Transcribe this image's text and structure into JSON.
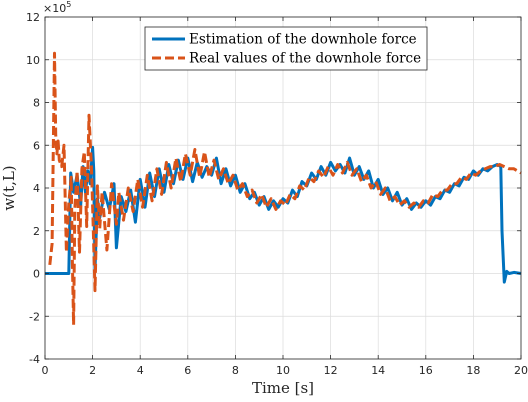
{
  "chart_data": {
    "type": "line",
    "xlabel": "Time [s]",
    "ylabel": "w(t,L)",
    "y_exponent_base": "×10",
    "y_exponent_power": "5",
    "xlim": [
      0,
      20
    ],
    "ylim": [
      -4,
      12
    ],
    "x_ticks": [
      "0",
      "2",
      "4",
      "6",
      "8",
      "10",
      "12",
      "14",
      "16",
      "18",
      "20"
    ],
    "y_ticks": [
      "-4",
      "-2",
      "0",
      "2",
      "4",
      "6",
      "8",
      "10",
      "12"
    ],
    "grid": true,
    "legend_position": "top-center",
    "series": [
      {
        "name": "Estimation of the downhole force",
        "color": "#0072BD",
        "style": "solid",
        "x": [
          0,
          1.0,
          1.08,
          1.2,
          1.35,
          1.5,
          1.6,
          1.7,
          1.8,
          1.9,
          2.0,
          2.05,
          2.1,
          2.2,
          2.3,
          2.5,
          2.7,
          2.9,
          3.0,
          3.2,
          3.4,
          3.6,
          3.8,
          4.0,
          4.2,
          4.4,
          4.6,
          4.8,
          5.0,
          5.2,
          5.4,
          5.6,
          5.8,
          6.0,
          6.2,
          6.4,
          6.6,
          6.8,
          7.0,
          7.2,
          7.4,
          7.6,
          7.8,
          8.0,
          8.2,
          8.4,
          8.6,
          8.8,
          9.0,
          9.2,
          9.4,
          9.6,
          9.8,
          10.0,
          10.2,
          10.4,
          10.6,
          10.8,
          11.0,
          11.2,
          11.4,
          11.6,
          11.8,
          12.0,
          12.2,
          12.4,
          12.6,
          12.8,
          13.0,
          13.2,
          13.4,
          13.6,
          13.8,
          14.0,
          14.2,
          14.4,
          14.6,
          14.8,
          15.0,
          15.2,
          15.4,
          15.6,
          15.8,
          16.0,
          16.2,
          16.4,
          16.6,
          16.8,
          17.0,
          17.2,
          17.4,
          17.6,
          17.8,
          18.0,
          18.2,
          18.4,
          18.6,
          18.8,
          19.0,
          19.15,
          19.2,
          19.3,
          19.4,
          19.5,
          19.7,
          20.0
        ],
        "y": [
          0,
          0,
          4.7,
          3.8,
          4.6,
          3.2,
          5.0,
          3.8,
          4.8,
          4.2,
          5.9,
          4.8,
          0.2,
          3.5,
          2.6,
          3.8,
          3.0,
          4.2,
          1.2,
          3.6,
          2.9,
          3.9,
          2.4,
          4.4,
          3.1,
          4.7,
          3.6,
          4.9,
          3.8,
          5.1,
          4.2,
          5.3,
          4.4,
          5.4,
          4.3,
          5.2,
          4.5,
          5.0,
          4.6,
          5.4,
          4.2,
          4.9,
          4.1,
          4.6,
          3.8,
          4.2,
          3.5,
          3.8,
          3.2,
          3.6,
          3.0,
          3.4,
          3.1,
          3.5,
          3.3,
          3.9,
          3.6,
          4.3,
          4.1,
          4.7,
          4.4,
          5.0,
          4.6,
          5.2,
          4.8,
          5.1,
          4.7,
          5.4,
          4.6,
          5.0,
          4.4,
          4.8,
          4.0,
          4.4,
          3.7,
          4.0,
          3.4,
          3.8,
          3.2,
          3.5,
          3.0,
          3.3,
          3.1,
          3.4,
          3.2,
          3.6,
          3.5,
          3.9,
          3.8,
          4.2,
          4.1,
          4.5,
          4.4,
          4.8,
          4.6,
          4.9,
          4.8,
          5.0,
          5.1,
          5.0,
          2.0,
          -0.4,
          0.1,
          0,
          0.05,
          0
        ]
      },
      {
        "name": "Real values of the downhole force",
        "color": "#D95319",
        "style": "dashed",
        "x": [
          0.2,
          0.3,
          0.4,
          0.45,
          0.5,
          0.55,
          0.6,
          0.7,
          0.8,
          0.9,
          1.0,
          1.1,
          1.15,
          1.2,
          1.25,
          1.35,
          1.45,
          1.55,
          1.65,
          1.75,
          1.85,
          1.95,
          2.0,
          2.1,
          2.2,
          2.3,
          2.4,
          2.6,
          2.8,
          3.0,
          3.1,
          3.3,
          3.5,
          3.7,
          3.9,
          4.1,
          4.3,
          4.5,
          4.7,
          4.9,
          5.1,
          5.3,
          5.5,
          5.7,
          5.9,
          6.1,
          6.3,
          6.5,
          6.7,
          6.9,
          7.1,
          7.3,
          7.5,
          7.7,
          7.9,
          8.1,
          8.3,
          8.5,
          8.7,
          8.9,
          9.1,
          9.3,
          9.5,
          9.7,
          9.9,
          10.1,
          10.3,
          10.5,
          10.7,
          10.9,
          11.1,
          11.3,
          11.5,
          11.7,
          11.9,
          12.1,
          12.3,
          12.5,
          12.7,
          12.9,
          13.1,
          13.3,
          13.5,
          13.7,
          13.9,
          14.1,
          14.3,
          14.5,
          14.7,
          14.9,
          15.1,
          15.3,
          15.5,
          15.7,
          15.9,
          16.1,
          16.3,
          16.5,
          16.7,
          16.9,
          17.1,
          17.3,
          17.5,
          17.7,
          17.9,
          18.1,
          18.3,
          18.5,
          18.7,
          18.9,
          19.1,
          19.3,
          19.5,
          19.7,
          20.0
        ],
        "y": [
          0.4,
          1.4,
          10.3,
          6.5,
          5.6,
          6.2,
          5.3,
          5.0,
          6.0,
          1.0,
          3.3,
          4.5,
          0.5,
          -2.4,
          3.0,
          4.8,
          1.0,
          4.9,
          5.7,
          2.2,
          7.4,
          5.0,
          3.2,
          -0.8,
          4.1,
          2.1,
          3.8,
          1.1,
          4.2,
          2.3,
          3.8,
          2.5,
          4.0,
          2.9,
          4.4,
          3.1,
          4.6,
          3.4,
          4.9,
          3.7,
          5.2,
          4.0,
          5.4,
          4.3,
          5.6,
          4.6,
          5.8,
          4.5,
          5.7,
          4.5,
          5.3,
          4.4,
          4.9,
          4.2,
          4.6,
          3.9,
          4.2,
          3.6,
          3.9,
          3.3,
          3.7,
          3.1,
          3.5,
          3.0,
          3.4,
          3.2,
          3.7,
          3.5,
          4.1,
          3.9,
          4.5,
          4.3,
          4.8,
          4.5,
          5.0,
          4.6,
          5.1,
          4.7,
          5.2,
          4.6,
          4.9,
          4.3,
          4.6,
          4.0,
          4.3,
          3.7,
          4.0,
          3.4,
          3.6,
          3.2,
          3.4,
          3.1,
          3.3,
          3.1,
          3.4,
          3.3,
          3.7,
          3.6,
          3.9,
          3.9,
          4.2,
          4.2,
          4.5,
          4.4,
          4.7,
          4.6,
          4.8,
          4.9,
          5.0,
          5.0,
          5.1,
          5.0,
          4.9,
          4.9,
          4.7
        ]
      }
    ]
  }
}
